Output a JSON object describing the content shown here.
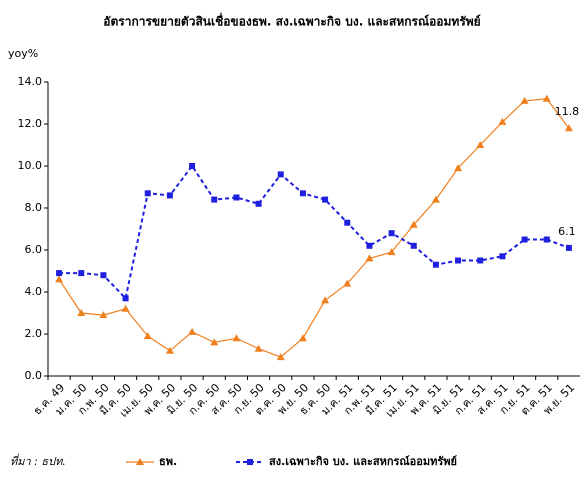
{
  "chart_data": {
    "type": "line",
    "title": "อัตราการขยายตัวสินเชื่อของธพ. สง.เฉพาะกิจ บง. และสหกรณ์ออมทรัพย์",
    "y_label": "yoy%",
    "source": "ที่มา : ธปท.",
    "categories": [
      "ธ.ค. 49",
      "ม.ค. 50",
      "ก.พ. 50",
      "มี.ค. 50",
      "เม.ย. 50",
      "พ.ค. 50",
      "มิ.ย. 50",
      "ก.ค. 50",
      "ส.ค. 50",
      "ก.ย. 50",
      "ต.ค. 50",
      "พ.ย. 50",
      "ธ.ค. 50",
      "ม.ค. 51",
      "ก.พ. 51",
      "มี.ค. 51",
      "เม.ย. 51",
      "พ.ค. 51",
      "มิ.ย. 51",
      "ก.ค. 51",
      "ส.ค. 51",
      "ก.ย. 51",
      "ต.ค. 51",
      "พ.ย. 51"
    ],
    "series": [
      {
        "name": "ธพ.",
        "color": "#f07f1e",
        "marker": "triangle",
        "dashed": false,
        "values": [
          4.6,
          3.0,
          2.9,
          3.2,
          1.9,
          1.2,
          2.1,
          1.6,
          1.8,
          1.3,
          0.9,
          1.8,
          3.6,
          4.4,
          5.6,
          5.9,
          7.2,
          8.4,
          9.9,
          11.0,
          12.1,
          13.1,
          13.2,
          11.8
        ]
      },
      {
        "name": "สง.เฉพาะกิจ บง. และสหกรณ์ออมทรัพย์",
        "color": "#1f1fe0",
        "marker": "square",
        "dashed": true,
        "values": [
          4.9,
          4.9,
          4.8,
          3.7,
          8.7,
          8.6,
          10.0,
          8.4,
          8.5,
          8.2,
          9.6,
          8.7,
          8.4,
          7.3,
          6.2,
          6.8,
          6.2,
          5.3,
          5.5,
          5.5,
          5.7,
          6.5,
          6.5,
          6.1
        ]
      }
    ],
    "ylim": [
      0,
      14
    ],
    "yticks": [
      {
        "value": 0,
        "label": "0.0"
      },
      {
        "value": 2,
        "label": "2.0"
      },
      {
        "value": 4,
        "label": "4.0"
      },
      {
        "value": 6,
        "label": "6.0"
      },
      {
        "value": 8,
        "label": "8.0"
      },
      {
        "value": 10,
        "label": "10.0"
      },
      {
        "value": 12,
        "label": "12.0"
      },
      {
        "value": 14,
        "label": "14.0"
      }
    ],
    "grid": false
  }
}
